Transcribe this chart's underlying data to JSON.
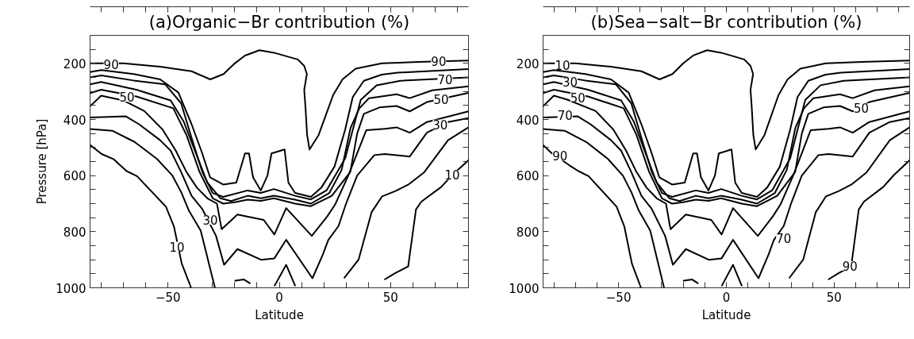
{
  "chart_data": [
    {
      "type": "line",
      "title": "(a)Organic−Br contribution (%)",
      "xlabel": "Latitude",
      "ylabel": "Pressure [hPa]",
      "xlim": [
        -85,
        85
      ],
      "ylim": [
        1000,
        100
      ],
      "xticks": [
        {
          "value": -80,
          "label": null
        },
        {
          "value": -70,
          "label": null
        },
        {
          "value": -60,
          "label": null
        },
        -50,
        {
          "value": -40,
          "label": null
        },
        {
          "value": -30,
          "label": null
        },
        {
          "value": -20,
          "label": null
        },
        {
          "value": -10,
          "label": null
        },
        0,
        {
          "value": 10,
          "label": null
        },
        {
          "value": 20,
          "label": null
        },
        {
          "value": 30,
          "label": null
        },
        {
          "value": 40,
          "label": null
        },
        50,
        {
          "value": 60,
          "label": null
        },
        {
          "value": 70,
          "label": null
        },
        {
          "value": 80,
          "label": null
        }
      ],
      "yticks": [
        {
          "value": 150,
          "label": null
        },
        200,
        {
          "value": 250,
          "label": null
        },
        {
          "value": 300,
          "label": null
        },
        {
          "value": 350,
          "label": null
        },
        400,
        {
          "value": 450,
          "label": null
        },
        {
          "value": 500,
          "label": null
        },
        {
          "value": 550,
          "label": null
        },
        600,
        {
          "value": 650,
          "label": null
        },
        {
          "value": 700,
          "label": null
        },
        {
          "value": 750,
          "label": null
        },
        800,
        {
          "value": 850,
          "label": null
        },
        {
          "value": 900,
          "label": null
        },
        {
          "value": 950,
          "label": null
        },
        1000
      ],
      "series": [
        {
          "color": "#000000",
          "x": [
            -85,
            -70,
            -53.5,
            -39.4,
            -31,
            -25,
            -20,
            -15.4,
            -8.9,
            -2.4,
            8.3,
            11.2,
            12.4,
            11.2,
            11.8,
            12.5,
            13.6,
            17.7,
            20.7,
            24.2,
            28.4,
            34.3,
            46.1,
            62.6,
            85
          ],
          "values": [
            200,
            200,
            212,
            228,
            257,
            238,
            200,
            172,
            153,
            162,
            186,
            209,
            238,
            294,
            360,
            455,
            507,
            455,
            389,
            313,
            257,
            219,
            200,
            195,
            190
          ]
        },
        {
          "color": "#000000",
          "x": [
            -85,
            -80,
            -65.4,
            -53.5,
            -45.3,
            -39.4,
            -34.6,
            -31.1,
            -25.2,
            -19.3,
            -15.4,
            -13.6,
            -11.8,
            -8.3,
            -5.3,
            -3.5,
            2.4,
            4.1,
            7.1,
            14.2,
            18.9,
            24.8,
            29.6,
            33,
            38,
            46,
            53.2,
            85
          ],
          "values": [
            231,
            224,
            238,
            257,
            304,
            417,
            521,
            606,
            632,
            625,
            521,
            521,
            606,
            653,
            600,
            521,
            507,
            625,
            662,
            676,
            643,
            568,
            436,
            320,
            262,
            240,
            233,
            220
          ]
        },
        {
          "color": "#000000",
          "x": [
            -85,
            -80,
            -65.4,
            -51.2,
            -44.1,
            -39.4,
            -34.6,
            -29.9,
            -25.2,
            -14.2,
            -8.3,
            -2.4,
            7.1,
            14.2,
            21.3,
            29.6,
            36.6,
            43.7,
            54.4,
            85
          ],
          "values": [
            250,
            243,
            261,
            275,
            342,
            465,
            587,
            662,
            676,
            653,
            662,
            648,
            672,
            685,
            652,
            539,
            330,
            278,
            262,
            250
          ]
        },
        {
          "color": "#000000",
          "x": [
            -85,
            -80,
            -64.2,
            -48.8,
            -42.9,
            -37,
            -32.3,
            -26.4,
            -21.7,
            -14.2,
            -8.3,
            -2.4,
            7.1,
            14.2,
            22.5,
            28,
            32,
            36,
            40.3,
            52.7,
            58.6,
            68.7,
            85
          ],
          "values": [
            275,
            266,
            294,
            332,
            408,
            530,
            625,
            681,
            691,
            672,
            681,
            672,
            686,
            700,
            662,
            580,
            430,
            360,
            324,
            310,
            324,
            296,
            282
          ]
        },
        {
          "color": "#000000",
          "x": [
            -85,
            -80,
            -64.2,
            -47.6,
            -41.7,
            -35.8,
            -29.9,
            -25.2,
            -20.1,
            -14.2,
            -8.3,
            -2.4,
            7.1,
            14.2,
            23.6,
            31.9,
            35,
            38,
            45,
            52.7,
            58.6,
            66.3,
            85
          ],
          "values": [
            306,
            294,
            318,
            360,
            455,
            587,
            681,
            700,
            695,
            686,
            690,
            681,
            700,
            709,
            672,
            587,
            450,
            380,
            357,
            352,
            371,
            338,
            305
          ]
        },
        {
          "color": "#000000",
          "x": [
            -85,
            -80,
            -70.1,
            -60.6,
            -52.4,
            -46.5,
            -41.7,
            -37,
            -32.3,
            -28,
            -25.9,
            -18.8,
            -7,
            -2.2,
            3.1,
            14.6,
            21.6,
            25.1,
            31,
            36,
            39.1,
            47.4,
            52.7,
            58.6,
            66.3,
            85
          ],
          "values": [
            353,
            315,
            332,
            370,
            436,
            511,
            587,
            643,
            681,
            700,
            791,
            739,
            758,
            810,
            716,
            815,
            745,
            703,
            600,
            500,
            438,
            433,
            428,
            447,
            409,
            371
          ]
        },
        {
          "color": "#000000",
          "x": [
            -85,
            -68.9,
            -63,
            -53.5,
            -48.8,
            -44.1,
            -39.4,
            -34.6,
            -28.4,
            -24.8,
            -18.8,
            -8.2,
            -2.2,
            3.1,
            14.9,
            19.6,
            22,
            26.6,
            30,
            35,
            42.7,
            47.4,
            58.6,
            66.3,
            75.8,
            85
          ],
          "values": [
            393,
            389,
            417,
            474,
            511,
            587,
            672,
            719,
            815,
            918,
            862,
            900,
            895,
            829,
            966,
            881,
            830,
            780,
            700,
            600,
            527,
            523,
            532,
            447,
            409,
            395
          ]
        },
        {
          "color": "#000000",
          "x": [
            -85,
            -75,
            -65,
            -55,
            -48,
            -44,
            -40.6,
            -35.3,
            -28.9
          ],
          "values": [
            434,
            440,
            480,
            540,
            600,
            660,
            725,
            796,
            1000
          ]
        },
        {
          "color": "#000000",
          "x": [
            -20.1,
            -16,
            -13
          ],
          "values": [
            975,
            970,
            985
          ]
        },
        {
          "color": "#000000",
          "x": [
            -2.2,
            3.1,
            7.2
          ],
          "values": [
            994,
            918,
            994
          ]
        },
        {
          "color": "#000000",
          "x": [
            29.1,
            35.6,
            41.5,
            46.2,
            52.2,
            58,
            65,
            75.8,
            85
          ],
          "values": [
            966,
            900,
            730,
            674,
            655,
            632,
            589,
            474,
            428
          ]
        },
        {
          "color": "#000000",
          "x": [
            -85,
            -79.8,
            -74.5,
            -68.6,
            -63.9,
            -50.9,
            -47.3,
            -43.8,
            -39.6
          ],
          "values": [
            491,
            523,
            541,
            584,
            602,
            711,
            782,
            914,
            1000
          ]
        },
        {
          "color": "#000000",
          "x": [
            47.2,
            52,
            57.9,
            61.4,
            63.8,
            72.7,
            77.7,
            85
          ],
          "values": [
            971,
            948,
            924,
            721,
            693,
            641,
            598,
            545
          ]
        }
      ],
      "annotations": [
        {
          "text": "90",
          "x": -75.5,
          "y": 203
        },
        {
          "text": "50",
          "x": -68.4,
          "y": 320
        },
        {
          "text": "30",
          "x": -31,
          "y": 758
        },
        {
          "text": "10",
          "x": -46,
          "y": 853
        },
        {
          "text": "90",
          "x": 71.6,
          "y": 192
        },
        {
          "text": "70",
          "x": 74.5,
          "y": 258
        },
        {
          "text": "50",
          "x": 72.7,
          "y": 329
        },
        {
          "text": "30",
          "x": 72.3,
          "y": 418
        },
        {
          "text": "10",
          "x": 77.7,
          "y": 598
        }
      ]
    },
    {
      "type": "line",
      "title": "(b)Sea−salt−Br contribution (%)",
      "xlabel": "Latitude",
      "xlim": [
        -85,
        85
      ],
      "ylim": [
        1000,
        100
      ],
      "xticks": [
        {
          "value": -80,
          "label": null
        },
        {
          "value": -70,
          "label": null
        },
        {
          "value": -60,
          "label": null
        },
        -50,
        {
          "value": -40,
          "label": null
        },
        {
          "value": -30,
          "label": null
        },
        {
          "value": -20,
          "label": null
        },
        {
          "value": -10,
          "label": null
        },
        0,
        {
          "value": 10,
          "label": null
        },
        {
          "value": 20,
          "label": null
        },
        {
          "value": 30,
          "label": null
        },
        {
          "value": 40,
          "label": null
        },
        50,
        {
          "value": 60,
          "label": null
        },
        {
          "value": 70,
          "label": null
        },
        {
          "value": 80,
          "label": null
        }
      ],
      "yticks": [
        {
          "value": 150,
          "label": null
        },
        200,
        {
          "value": 250,
          "label": null
        },
        {
          "value": 300,
          "label": null
        },
        {
          "value": 350,
          "label": null
        },
        400,
        {
          "value": 450,
          "label": null
        },
        {
          "value": 500,
          "label": null
        },
        {
          "value": 550,
          "label": null
        },
        600,
        {
          "value": 650,
          "label": null
        },
        {
          "value": 700,
          "label": null
        },
        {
          "value": 750,
          "label": null
        },
        800,
        {
          "value": 850,
          "label": null
        },
        {
          "value": 900,
          "label": null
        },
        {
          "value": 950,
          "label": null
        },
        1000
      ],
      "series": [
        {
          "color": "#000000",
          "x": [
            -85,
            -70,
            -53.5,
            -39.4,
            -31,
            -25,
            -20,
            -15.4,
            -8.9,
            -2.4,
            8.3,
            11.2,
            12.4,
            11.2,
            11.8,
            12.5,
            13.6,
            17.7,
            20.7,
            24.2,
            28.4,
            34.3,
            46.1,
            62.6,
            85
          ],
          "values": [
            200,
            200,
            212,
            228,
            257,
            238,
            200,
            172,
            153,
            162,
            186,
            209,
            238,
            294,
            360,
            455,
            507,
            455,
            389,
            313,
            257,
            219,
            200,
            195,
            190
          ]
        },
        {
          "color": "#000000",
          "x": [
            -85,
            -80,
            -65.4,
            -53.5,
            -45.3,
            -39.4,
            -34.6,
            -31.1,
            -25.2,
            -19.3,
            -15.4,
            -13.6,
            -11.8,
            -8.3,
            -5.3,
            -3.5,
            2.4,
            4.1,
            7.1,
            14.2,
            18.9,
            24.8,
            29.6,
            33,
            38,
            46,
            53.2,
            85
          ],
          "values": [
            231,
            224,
            238,
            257,
            304,
            417,
            521,
            606,
            632,
            625,
            521,
            521,
            606,
            653,
            600,
            521,
            507,
            625,
            662,
            676,
            643,
            568,
            436,
            320,
            262,
            240,
            233,
            220
          ]
        },
        {
          "color": "#000000",
          "x": [
            -85,
            -80,
            -65.4,
            -51.2,
            -44.1,
            -39.4,
            -34.6,
            -29.9,
            -25.2,
            -14.2,
            -8.3,
            -2.4,
            7.1,
            14.2,
            21.3,
            29.6,
            36.6,
            43.7,
            54.4,
            85
          ],
          "values": [
            250,
            243,
            261,
            275,
            342,
            465,
            587,
            662,
            676,
            653,
            662,
            648,
            672,
            685,
            652,
            539,
            330,
            278,
            262,
            250
          ]
        },
        {
          "color": "#000000",
          "x": [
            -85,
            -80,
            -64.2,
            -48.8,
            -42.9,
            -37,
            -32.3,
            -26.4,
            -21.7,
            -14.2,
            -8.3,
            -2.4,
            7.1,
            14.2,
            22.5,
            28,
            32,
            36,
            40.3,
            52.7,
            58.6,
            68.7,
            85
          ],
          "values": [
            275,
            266,
            294,
            332,
            408,
            530,
            625,
            681,
            691,
            672,
            681,
            672,
            686,
            700,
            662,
            580,
            430,
            360,
            324,
            310,
            324,
            296,
            282
          ]
        },
        {
          "color": "#000000",
          "x": [
            -85,
            -80,
            -64.2,
            -47.6,
            -41.7,
            -35.8,
            -29.9,
            -25.2,
            -20.1,
            -14.2,
            -8.3,
            -2.4,
            7.1,
            14.2,
            23.6,
            31.9,
            35,
            38,
            45,
            52.7,
            58.6,
            66.3,
            85
          ],
          "values": [
            306,
            294,
            318,
            360,
            455,
            587,
            681,
            700,
            695,
            686,
            690,
            681,
            700,
            709,
            672,
            587,
            450,
            380,
            357,
            352,
            371,
            338,
            305
          ]
        },
        {
          "color": "#000000",
          "x": [
            -85,
            -80,
            -73.5,
            -60.6,
            -52.4,
            -46.5,
            -41.7,
            -37,
            -32.3,
            -28,
            -25.9,
            -18.8,
            -7,
            -2.2,
            3.1,
            14.6,
            21.6,
            25.1,
            31,
            36,
            39.1,
            47.4,
            52.7,
            58.6,
            66.3,
            85
          ],
          "values": [
            353,
            315,
            330,
            370,
            436,
            511,
            587,
            643,
            681,
            700,
            791,
            739,
            758,
            810,
            716,
            815,
            745,
            703,
            600,
            500,
            438,
            433,
            428,
            447,
            409,
            371
          ]
        },
        {
          "color": "#000000",
          "x": [
            -85,
            -68.9,
            -63,
            -53.5,
            -48.8,
            -44.1,
            -39.4,
            -34.6,
            -28.4,
            -24.8,
            -18.8,
            -8.2,
            -2.2,
            3.1,
            14.9,
            19.6,
            22,
            26.6,
            30,
            35,
            42.7,
            47.4,
            58.6,
            66.3,
            75.8,
            85
          ],
          "values": [
            393,
            389,
            417,
            474,
            511,
            587,
            672,
            719,
            815,
            918,
            862,
            900,
            895,
            829,
            966,
            881,
            830,
            780,
            700,
            600,
            527,
            523,
            532,
            447,
            409,
            395
          ]
        },
        {
          "color": "#000000",
          "x": [
            -85,
            -75,
            -65,
            -55,
            -48,
            -44,
            -40.6,
            -35.3,
            -28.9
          ],
          "values": [
            434,
            440,
            480,
            540,
            600,
            660,
            725,
            796,
            1000
          ]
        },
        {
          "color": "#000000",
          "x": [
            -20.1,
            -16,
            -13
          ],
          "values": [
            975,
            970,
            985
          ]
        },
        {
          "color": "#000000",
          "x": [
            -2.2,
            3.1,
            7.2
          ],
          "values": [
            994,
            918,
            994
          ]
        },
        {
          "color": "#000000",
          "x": [
            29.1,
            35.6,
            41.5,
            46.2,
            52.2,
            58,
            65,
            75.8,
            85
          ],
          "values": [
            966,
            900,
            730,
            674,
            655,
            632,
            589,
            474,
            428
          ]
        },
        {
          "color": "#000000",
          "x": [
            -85,
            -81.5,
            -72.5,
            -68.6,
            -63.9,
            -50.9,
            -47.3,
            -43.8,
            -39.6
          ],
          "values": [
            491,
            517,
            565,
            584,
            602,
            711,
            782,
            914,
            1000
          ]
        },
        {
          "color": "#000000",
          "x": [
            47.2,
            52,
            57.9,
            61.4,
            63.8,
            72.7,
            77.7,
            85
          ],
          "values": [
            971,
            948,
            924,
            721,
            693,
            641,
            598,
            545
          ]
        }
      ],
      "annotations": [
        {
          "text": "10",
          "x": -76,
          "y": 205
        },
        {
          "text": "30",
          "x": -72.5,
          "y": 266
        },
        {
          "text": "50",
          "x": -68.9,
          "y": 321
        },
        {
          "text": "70",
          "x": -74.8,
          "y": 384
        },
        {
          "text": "90",
          "x": -77.2,
          "y": 530
        },
        {
          "text": "50",
          "x": 62.6,
          "y": 360
        },
        {
          "text": "70",
          "x": 26.6,
          "y": 823
        },
        {
          "text": "90",
          "x": 57.3,
          "y": 922
        }
      ]
    }
  ]
}
